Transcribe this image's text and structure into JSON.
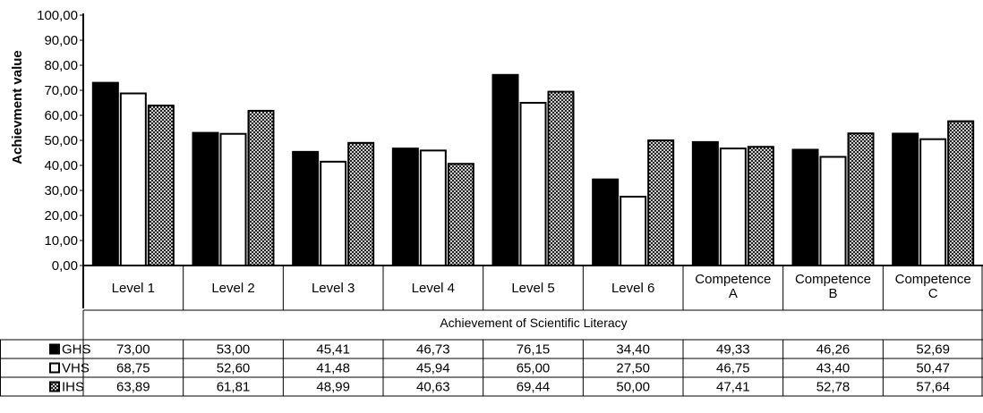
{
  "chart_data": {
    "type": "bar",
    "title": "",
    "xlabel": "Achievement of Scientific Literacy",
    "ylabel": "Achievment value",
    "ylim": [
      0,
      100
    ],
    "ytick_step": 10,
    "ytick_labels": [
      "0,00",
      "10,00",
      "20,00",
      "30,00",
      "40,00",
      "50,00",
      "60,00",
      "70,00",
      "80,00",
      "90,00",
      "100,00"
    ],
    "categories": [
      [
        "Level 1"
      ],
      [
        "Level 2"
      ],
      [
        "Level 3"
      ],
      [
        "Level 4"
      ],
      [
        "Level 5"
      ],
      [
        "Level 6"
      ],
      [
        "Competence",
        "A"
      ],
      [
        "Competence",
        "B"
      ],
      [
        "Competence",
        "C"
      ]
    ],
    "grid": false,
    "legend": "data-table-rows",
    "series": [
      {
        "name": "GHS",
        "fill": "solid-black",
        "values": [
          73.0,
          53.0,
          45.41,
          46.73,
          76.15,
          34.4,
          49.33,
          46.26,
          52.69
        ],
        "labels": [
          "73,00",
          "53,00",
          "45,41",
          "46,73",
          "76,15",
          "34,40",
          "49,33",
          "46,26",
          "52,69"
        ]
      },
      {
        "name": "VHS",
        "fill": "white",
        "values": [
          68.75,
          52.6,
          41.48,
          45.94,
          65.0,
          27.5,
          46.75,
          43.4,
          50.47
        ],
        "labels": [
          "68,75",
          "52,60",
          "41,48",
          "45,94",
          "65,00",
          "27,50",
          "46,75",
          "43,40",
          "50,47"
        ]
      },
      {
        "name": "IHS",
        "fill": "cross-hatch",
        "values": [
          63.89,
          61.81,
          48.99,
          40.63,
          69.44,
          50.0,
          47.41,
          52.78,
          57.64
        ],
        "labels": [
          "63,89",
          "61,81",
          "48,99",
          "40,63",
          "69,44",
          "50,00",
          "47,41",
          "52,78",
          "57,64"
        ]
      }
    ]
  }
}
